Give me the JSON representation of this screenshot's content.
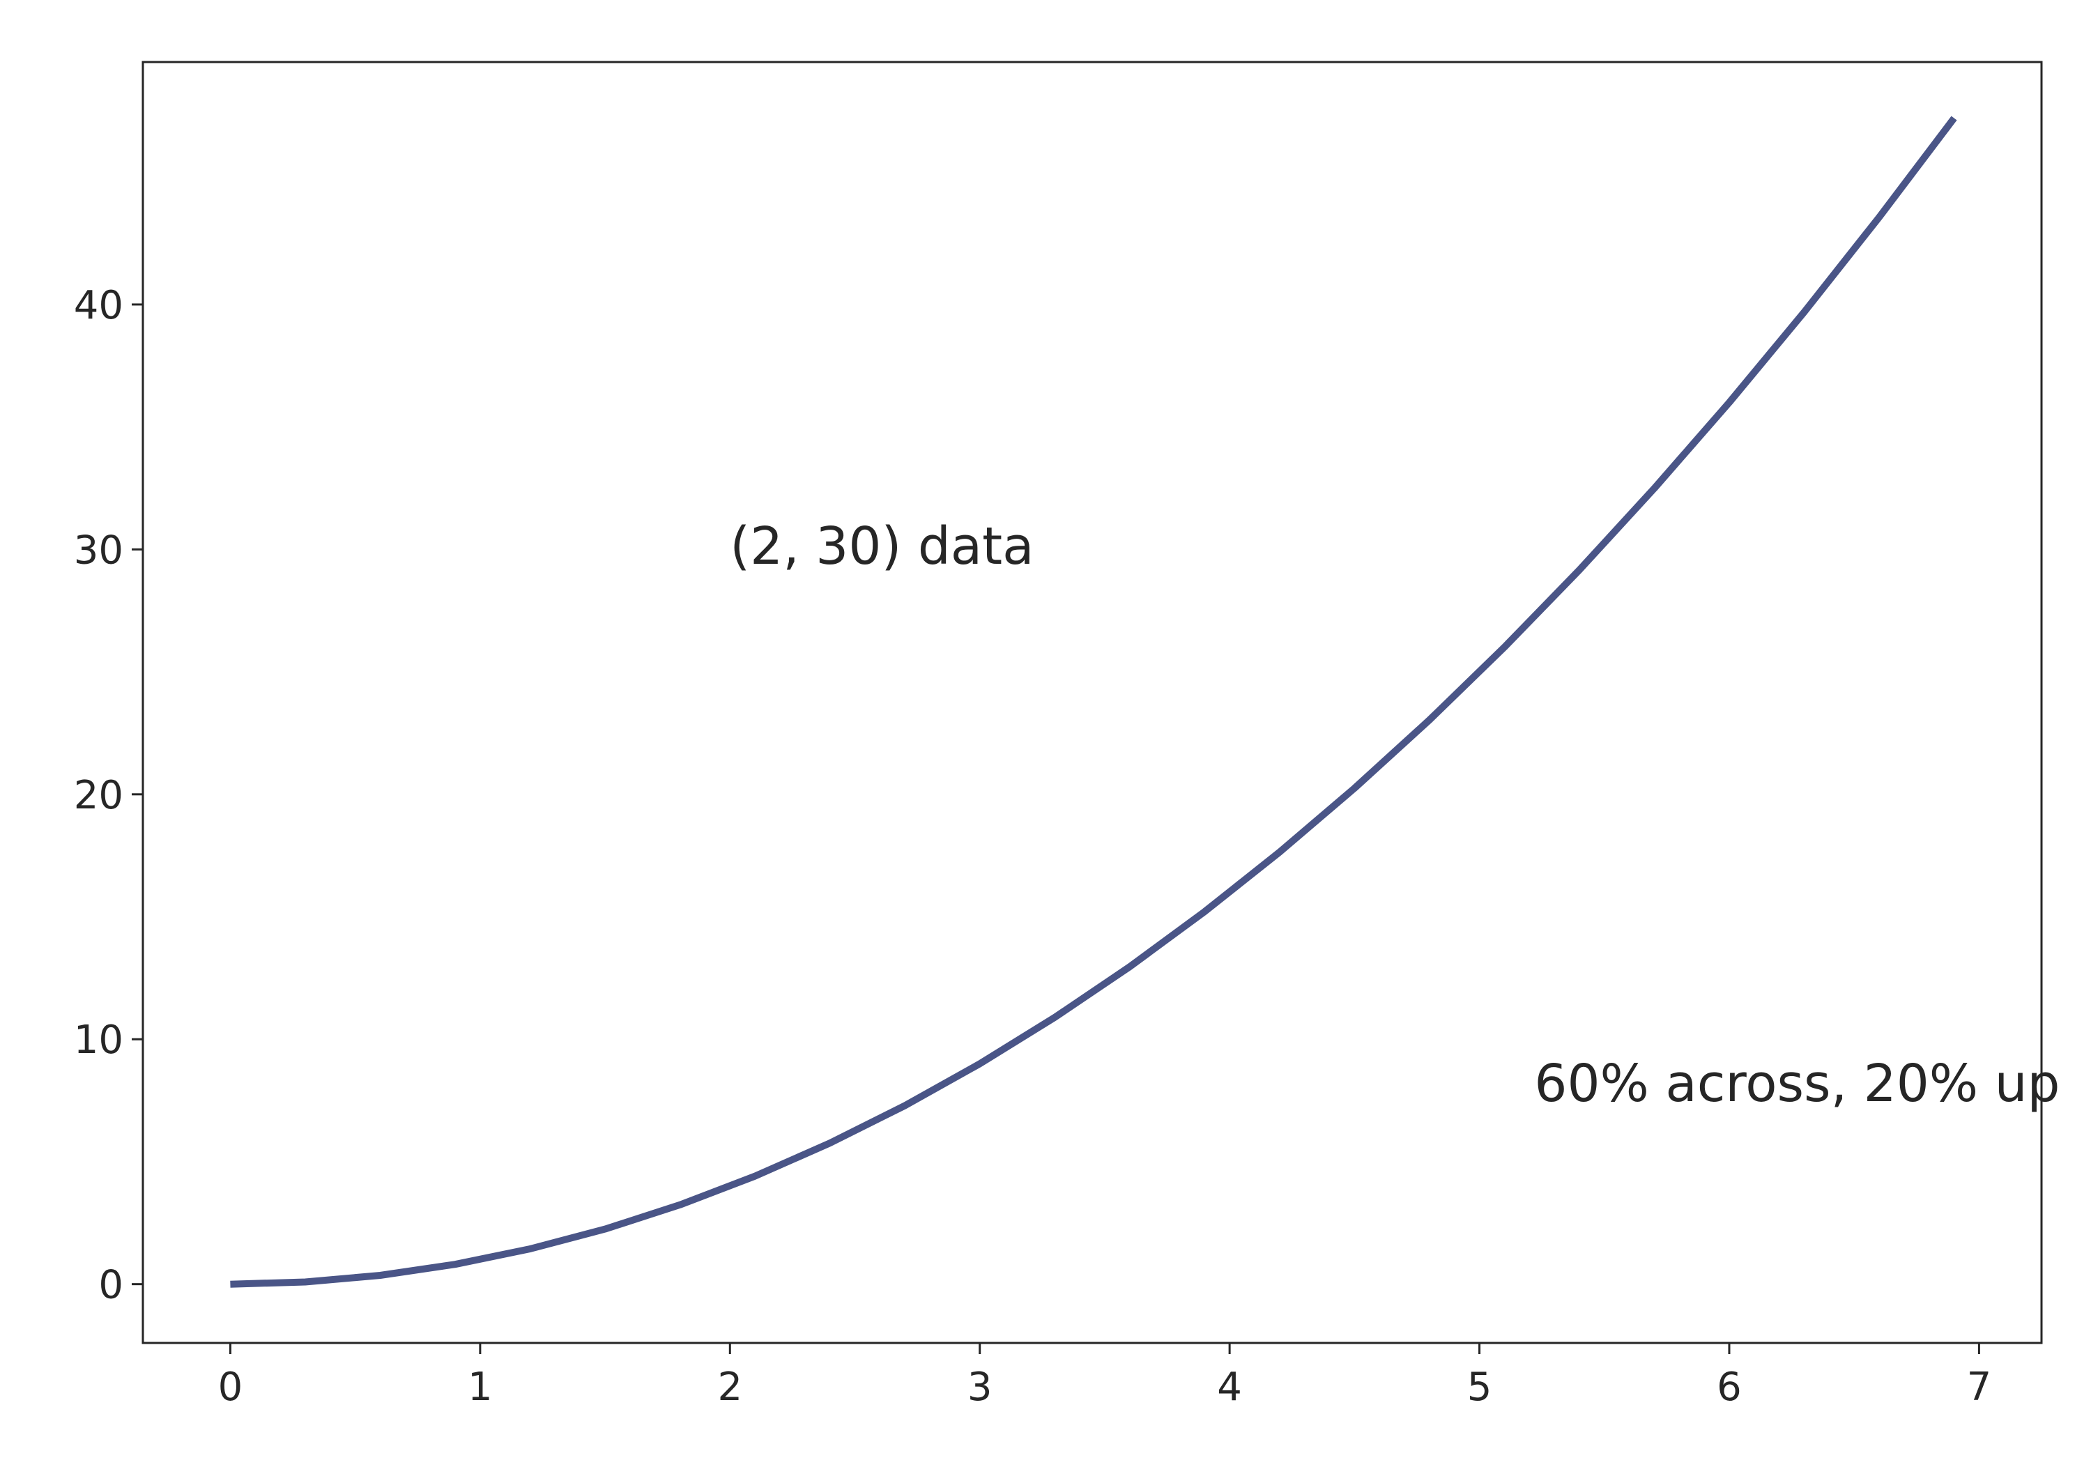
{
  "chart_data": {
    "type": "line",
    "title": "",
    "xlabel": "",
    "ylabel": "",
    "xlim": [
      -0.35,
      7.25
    ],
    "ylim": [
      -2.4,
      49.9
    ],
    "x_ticks": [
      0,
      1,
      2,
      3,
      4,
      5,
      6,
      7
    ],
    "y_ticks": [
      0,
      10,
      20,
      30,
      40
    ],
    "grid": false,
    "legend": "none",
    "series": [
      {
        "color": "#4a5587",
        "x": [
          0,
          0.3,
          0.6,
          0.9,
          1.2,
          1.5,
          1.8,
          2.1,
          2.4,
          2.7,
          3.0,
          3.3,
          3.6,
          3.9,
          4.2,
          4.5,
          4.8,
          5.1,
          5.4,
          5.7,
          6.0,
          6.3,
          6.6,
          6.9
        ],
        "y": [
          0,
          0.09,
          0.36,
          0.81,
          1.44,
          2.25,
          3.24,
          4.41,
          5.76,
          7.29,
          9.0,
          10.89,
          12.96,
          15.21,
          17.64,
          20.25,
          23.04,
          26.01,
          29.16,
          32.49,
          36.0,
          39.69,
          43.56,
          47.61
        ]
      }
    ],
    "annotations": [
      {
        "text": "(2, 30) data",
        "x": 2,
        "y": 30
      },
      {
        "text": "60% across, 20% up",
        "x": 5.22,
        "y": 8.06
      }
    ]
  }
}
